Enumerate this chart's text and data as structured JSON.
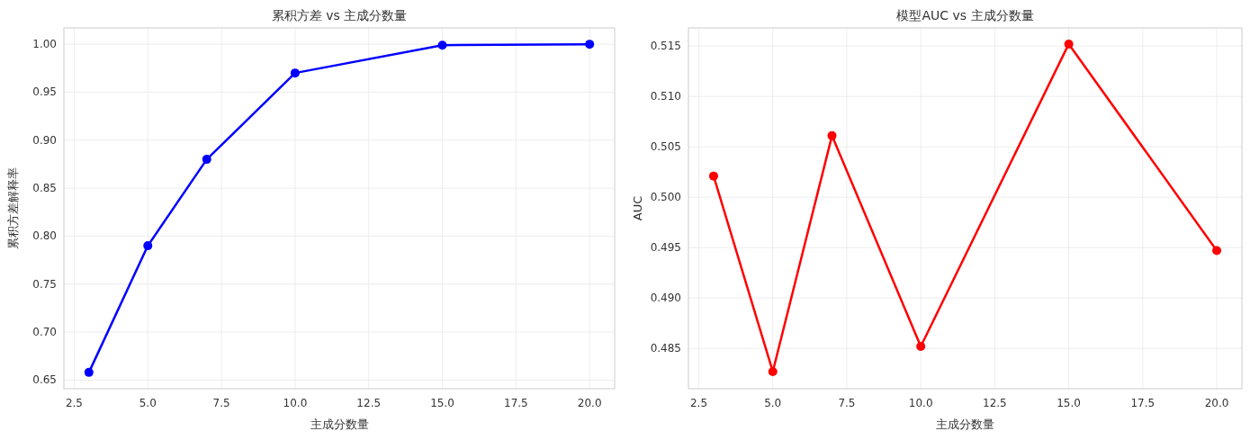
{
  "chart_data": [
    {
      "type": "line",
      "title": "累积方差 vs 主成分数量",
      "xlabel": "主成分数量",
      "ylabel": "累积方差解释率",
      "x": [
        3,
        5,
        7,
        10,
        15,
        20
      ],
      "series": [
        {
          "color": "#0000ff",
          "values": [
            0.658,
            0.79,
            0.88,
            0.97,
            0.999,
            1.0
          ]
        }
      ],
      "xlim": [
        2.15,
        20.85
      ],
      "ylim": [
        0.641,
        1.017
      ],
      "xticks": [
        {
          "value": 2.5,
          "label": "2.5"
        },
        {
          "value": 5,
          "label": "5.0"
        },
        {
          "value": 7.5,
          "label": "7.5"
        },
        {
          "value": 10,
          "label": "10.0"
        },
        {
          "value": 12.5,
          "label": "12.5"
        },
        {
          "value": 15,
          "label": "15.0"
        },
        {
          "value": 17.5,
          "label": "17.5"
        },
        {
          "value": 20,
          "label": "20.0"
        }
      ],
      "yticks": [
        {
          "value": 0.65,
          "label": "0.65"
        },
        {
          "value": 0.7,
          "label": "0.70"
        },
        {
          "value": 0.75,
          "label": "0.75"
        },
        {
          "value": 0.8,
          "label": "0.80"
        },
        {
          "value": 0.85,
          "label": "0.85"
        },
        {
          "value": 0.9,
          "label": "0.90"
        },
        {
          "value": 0.95,
          "label": "0.95"
        },
        {
          "value": 1.0,
          "label": "1.00"
        }
      ],
      "grid": true,
      "marker": "circle",
      "line_style": "solid"
    },
    {
      "type": "line",
      "title": "模型AUC vs 主成分数量",
      "xlabel": "主成分数量",
      "ylabel": "AUC",
      "x": [
        3,
        5,
        7,
        10,
        15,
        20
      ],
      "series": [
        {
          "color": "#ff0000",
          "values": [
            0.5021,
            0.4827,
            0.5061,
            0.4852,
            0.5152,
            0.4947
          ]
        }
      ],
      "xlim": [
        2.15,
        20.85
      ],
      "ylim": [
        0.481,
        0.5168
      ],
      "xticks": [
        {
          "value": 2.5,
          "label": "2.5"
        },
        {
          "value": 5,
          "label": "5.0"
        },
        {
          "value": 7.5,
          "label": "7.5"
        },
        {
          "value": 10,
          "label": "10.0"
        },
        {
          "value": 12.5,
          "label": "12.5"
        },
        {
          "value": 15,
          "label": "15.0"
        },
        {
          "value": 17.5,
          "label": "17.5"
        },
        {
          "value": 20,
          "label": "20.0"
        }
      ],
      "yticks": [
        {
          "value": 0.485,
          "label": "0.485"
        },
        {
          "value": 0.49,
          "label": "0.490"
        },
        {
          "value": 0.495,
          "label": "0.495"
        },
        {
          "value": 0.5,
          "label": "0.500"
        },
        {
          "value": 0.505,
          "label": "0.505"
        },
        {
          "value": 0.51,
          "label": "0.510"
        },
        {
          "value": 0.515,
          "label": "0.515"
        }
      ],
      "grid": true,
      "marker": "circle",
      "line_style": "solid"
    }
  ]
}
